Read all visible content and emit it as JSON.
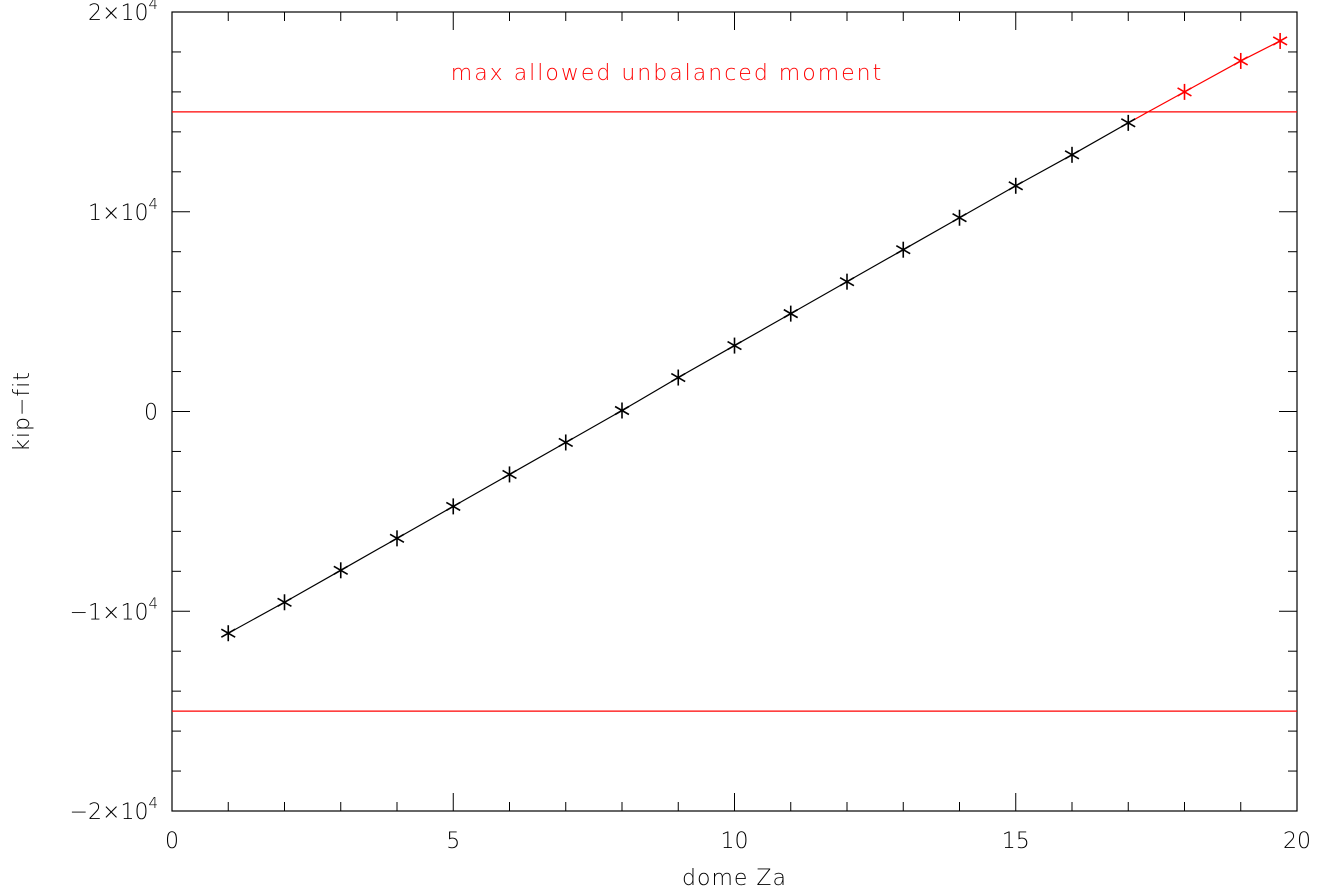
{
  "chart_data": {
    "type": "line",
    "xlabel": "dome Za",
    "ylabel": "kip−fit",
    "xlim": [
      0,
      20
    ],
    "ylim": [
      -20000,
      20000
    ],
    "x_ticks": [
      {
        "value": 0,
        "label": "0"
      },
      {
        "value": 5,
        "label": "5"
      },
      {
        "value": 10,
        "label": "10"
      },
      {
        "value": 15,
        "label": "15"
      },
      {
        "value": 20,
        "label": "20"
      }
    ],
    "y_ticks": [
      {
        "value": -20000,
        "label_mantissa": "−2×10",
        "label_exp": "4"
      },
      {
        "value": -10000,
        "label_mantissa": "−1×10",
        "label_exp": "4"
      },
      {
        "value": 0,
        "label_mantissa": "0",
        "label_exp": ""
      },
      {
        "value": 10000,
        "label_mantissa": "1×10",
        "label_exp": "4"
      },
      {
        "value": 20000,
        "label_mantissa": "2×10",
        "label_exp": "4"
      }
    ],
    "series": [
      {
        "color": "#000000",
        "marker": "asterisk",
        "x": [
          1,
          2,
          3,
          4,
          5,
          6,
          7,
          8,
          9,
          10,
          11,
          12,
          13,
          14,
          15,
          16,
          17
        ],
        "y": [
          -11100,
          -9550,
          -7950,
          -6350,
          -4750,
          -3150,
          -1550,
          50,
          1700,
          3300,
          4900,
          6500,
          8100,
          9700,
          11300,
          12850,
          14450
        ]
      },
      {
        "color": "#ff0000",
        "marker": "asterisk",
        "x": [
          18,
          19,
          19.7
        ],
        "y": [
          16000,
          17550,
          18550
        ]
      }
    ],
    "hlines": [
      {
        "y": 15000,
        "color": "#ff0000"
      },
      {
        "y": -15000,
        "color": "#ff0000"
      }
    ],
    "annotations": [
      {
        "text": "max allowed unbalanced moment",
        "x": 8.8,
        "y": 16600,
        "color": "#ff0000"
      }
    ]
  }
}
